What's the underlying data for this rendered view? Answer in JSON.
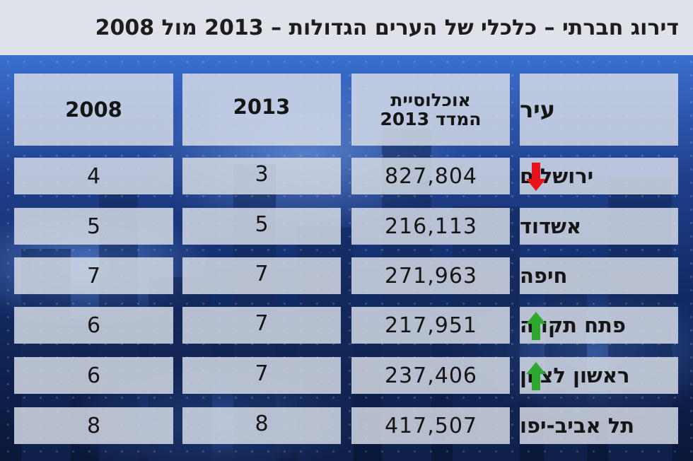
{
  "title": "דירוג חברתי – כלכלי של הערים הגדולות – 2013 מול 2008",
  "chart_data": {
    "type": "table",
    "columns": [
      "עיר",
      "אוכלוסיית המדד 2013",
      "2013",
      "2008"
    ],
    "header_pop_line1": "אוכלוסיית",
    "header_pop_line2": "המדד  2013",
    "rows": [
      {
        "city": "ירושלים",
        "population": "827,804",
        "rank_2013": "3",
        "rank_2008": "4",
        "trend": "down"
      },
      {
        "city": "אשדוד",
        "population": "216,113",
        "rank_2013": "5",
        "rank_2008": "5",
        "trend": "none"
      },
      {
        "city": "חיפה",
        "population": "271,963",
        "rank_2013": "7",
        "rank_2008": "7",
        "trend": "none"
      },
      {
        "city": "פתח תקווה",
        "population": "217,951",
        "rank_2013": "7",
        "rank_2008": "6",
        "trend": "up"
      },
      {
        "city": "ראשון לציון",
        "population": "237,406",
        "rank_2013": "7",
        "rank_2008": "6",
        "trend": "up"
      },
      {
        "city": "תל אביב-יפו",
        "population": "417,507",
        "rank_2013": "8",
        "rank_2008": "8",
        "trend": "none"
      }
    ],
    "colors": {
      "up": "#2ea82e",
      "down": "#e8141c"
    }
  }
}
